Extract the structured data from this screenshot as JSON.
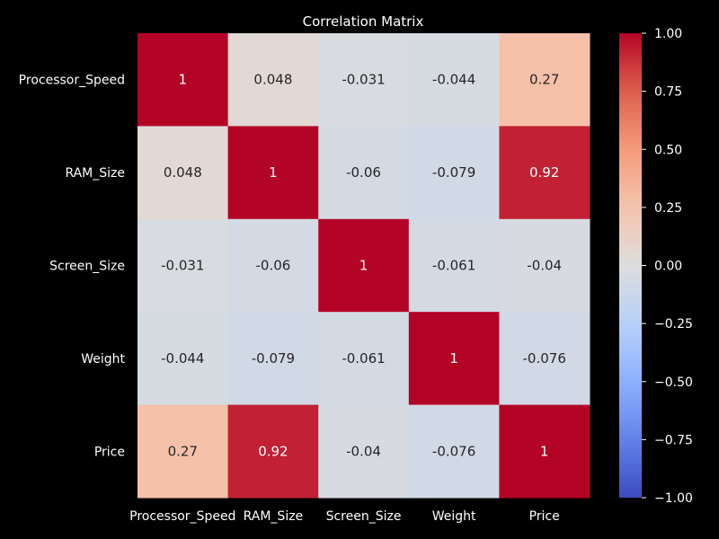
{
  "chart_data": {
    "type": "heatmap",
    "title": "Correlation Matrix",
    "x_labels": [
      "Processor_Speed",
      "RAM_Size",
      "Screen_Size",
      "Weight",
      "Price"
    ],
    "y_labels": [
      "Processor_Speed",
      "RAM_Size",
      "Screen_Size",
      "Weight",
      "Price"
    ],
    "values": [
      [
        1,
        0.048,
        -0.031,
        -0.044,
        0.27
      ],
      [
        0.048,
        1,
        -0.06,
        -0.079,
        0.92
      ],
      [
        -0.031,
        -0.06,
        1,
        -0.061,
        -0.04
      ],
      [
        -0.044,
        -0.079,
        -0.061,
        1,
        -0.076
      ],
      [
        0.27,
        0.92,
        -0.04,
        -0.076,
        1
      ]
    ],
    "value_labels": [
      [
        "1",
        "0.048",
        "-0.031",
        "-0.044",
        "0.27"
      ],
      [
        "0.048",
        "1",
        "-0.06",
        "-0.079",
        "0.92"
      ],
      [
        "-0.031",
        "-0.06",
        "1",
        "-0.061",
        "-0.04"
      ],
      [
        "-0.044",
        "-0.079",
        "-0.061",
        "1",
        "-0.076"
      ],
      [
        "0.27",
        "0.92",
        "-0.04",
        "-0.076",
        "1"
      ]
    ],
    "colorbar": {
      "vmin": -1,
      "vmax": 1,
      "ticks": [
        1,
        0.75,
        0.5,
        0.25,
        0,
        -0.25,
        -0.5,
        -0.75,
        -1
      ],
      "tick_labels": [
        "1.00",
        "0.75",
        "0.50",
        "0.25",
        "0.00",
        "−0.25",
        "−0.50",
        "−0.75",
        "−1.00"
      ],
      "colormap": "coolwarm"
    },
    "background_color": "#000000",
    "text_color": "#ffffff"
  }
}
